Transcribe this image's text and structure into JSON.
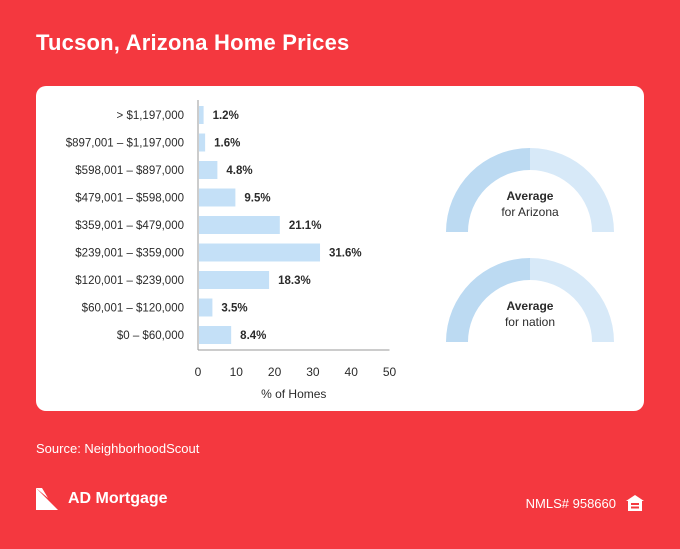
{
  "header": {
    "title": "Tucson, Arizona Home Prices"
  },
  "chart_data": {
    "type": "bar",
    "orientation": "horizontal",
    "categories": [
      "> $1,197,000",
      "$897,001 – $1,197,000",
      "$598,001 – $897,000",
      "$479,001 – $598,000",
      "$359,001 – $479,000",
      "$239,001 – $359,000",
      "$120,001 – $239,000",
      "$60,001 – $120,000",
      "$0 – $60,000"
    ],
    "values": [
      1.2,
      1.6,
      4.8,
      9.5,
      21.1,
      31.6,
      18.3,
      3.5,
      8.4
    ],
    "value_labels": [
      "1.2%",
      "1.6%",
      "4.8%",
      "9.5%",
      "21.1%",
      "31.6%",
      "18.3%",
      "3.5%",
      "8.4%"
    ],
    "xlim": [
      0,
      50
    ],
    "xticks": [
      0,
      10,
      20,
      30,
      40,
      50
    ],
    "xlabel": "% of Homes",
    "ylabel": "",
    "grid": false,
    "bar_color": "#c4e0f7"
  },
  "gauges": [
    {
      "line1": "Average",
      "line2": "for Arizona",
      "left_color": "#bcdaf2",
      "right_color": "#d7e9f8"
    },
    {
      "line1": "Average",
      "line2": "for nation",
      "left_color": "#bcdaf2",
      "right_color": "#d7e9f8"
    }
  ],
  "footer": {
    "source": "Source: NeighborhoodScout",
    "brand": "AD Mortgage",
    "nmls": "NMLS# 958660"
  },
  "colors": {
    "background": "#f4383f",
    "card": "#ffffff",
    "text_dark": "#2b2b2b",
    "bar": "#c4e0f7"
  },
  "icons": {
    "logo": "ad-mortgage-logo",
    "equal_housing": "equal-housing-icon"
  }
}
